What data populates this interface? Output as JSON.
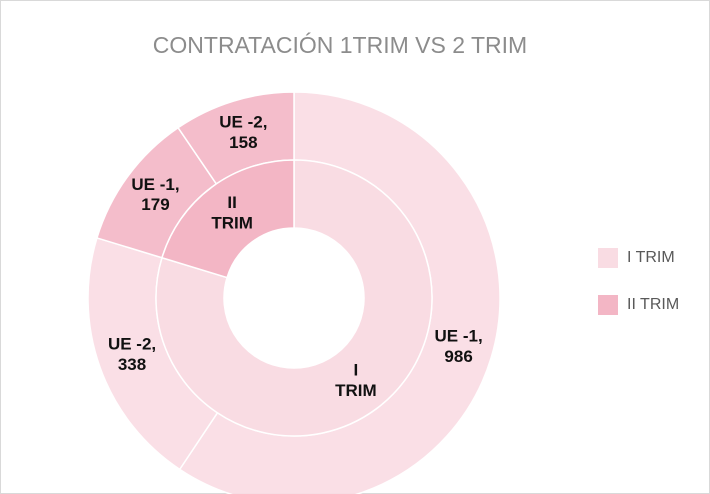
{
  "chart_data": {
    "type": "sunburst",
    "title": "CONTRATACIÓN 1TRIM VS 2 TRIM",
    "groups": [
      {
        "name": "I TRIM",
        "color": "#f9dce3",
        "children": [
          {
            "name": "UE -1",
            "value": 986,
            "value_label": "UE -1, 986"
          },
          {
            "name": "UE -2",
            "value": 338,
            "value_label": "UE -2, 338"
          }
        ]
      },
      {
        "name": "II TRIM",
        "color": "#f3b6c5",
        "children": [
          {
            "name": "UE -1",
            "value": 179,
            "value_label": "UE -1, 179"
          },
          {
            "name": "UE -2",
            "value": 158,
            "value_label": "UE -2, 158"
          }
        ]
      }
    ],
    "legend": "right"
  }
}
